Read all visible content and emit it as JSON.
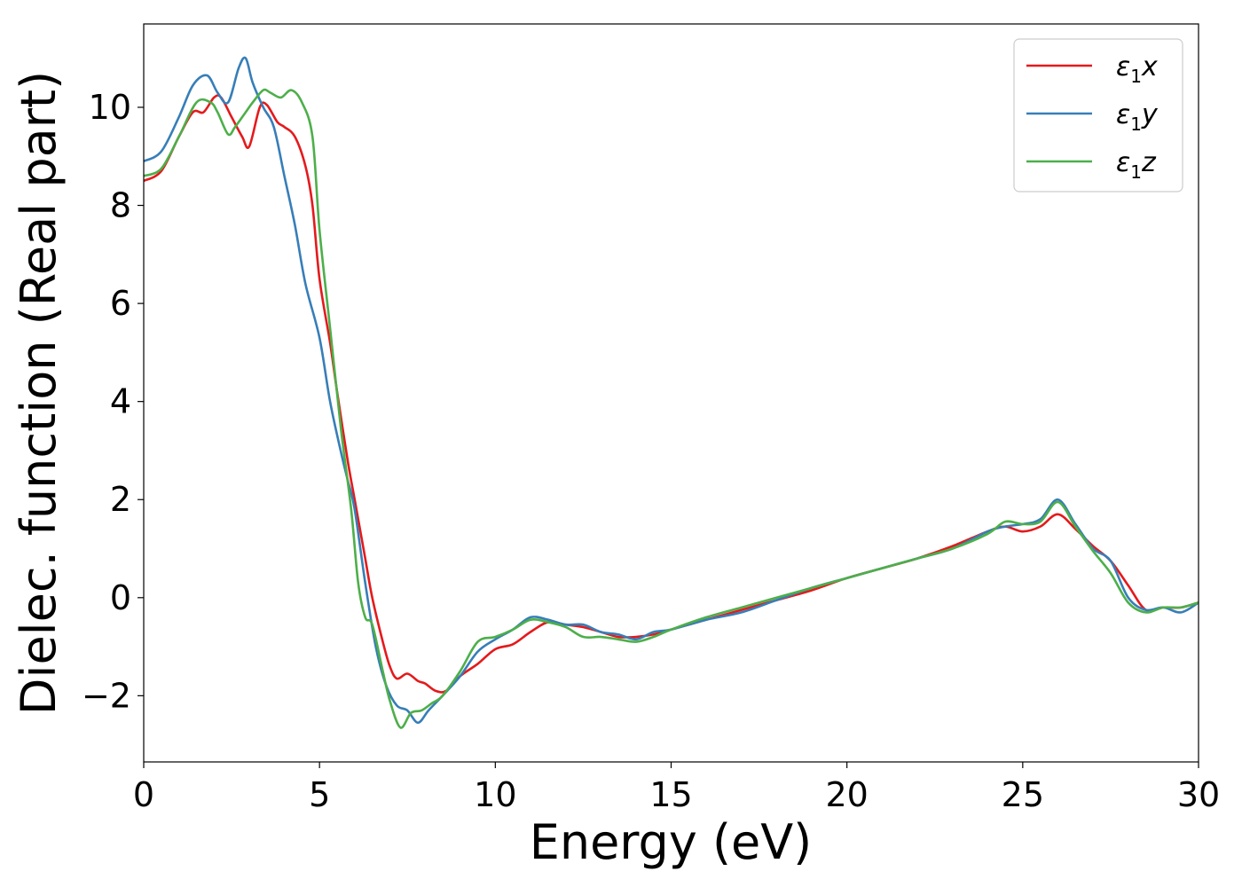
{
  "chart_data": {
    "type": "line",
    "title": "",
    "xlabel": "Energy (eV)",
    "ylabel": "Dielec. function (Real part)",
    "xlim": [
      0,
      30
    ],
    "ylim": [
      -3.35,
      11.7
    ],
    "xticks": [
      0,
      5,
      10,
      15,
      20,
      25,
      30
    ],
    "xtick_labels": [
      "0",
      "5",
      "10",
      "15",
      "20",
      "25",
      "30"
    ],
    "yticks": [
      -2,
      0,
      2,
      4,
      6,
      8,
      10
    ],
    "ytick_labels": [
      "−2",
      "0",
      "2",
      "4",
      "6",
      "8",
      "10"
    ],
    "grid": false,
    "legend_position": "top-right",
    "series": [
      {
        "name": "ε₁x",
        "legend_base": "ε",
        "legend_sub": "1",
        "legend_var": "x",
        "color": "#e41a1c",
        "x": [
          0,
          0.5,
          1.0,
          1.4,
          1.7,
          2.0,
          2.2,
          2.5,
          2.8,
          3.0,
          3.3,
          3.5,
          3.8,
          4.0,
          4.3,
          4.6,
          4.8,
          5.0,
          5.3,
          5.5,
          5.8,
          6.0,
          6.3,
          6.5,
          6.8,
          7.0,
          7.2,
          7.5,
          7.8,
          8.0,
          8.3,
          8.6,
          9.0,
          9.5,
          10.0,
          10.5,
          11.0,
          11.5,
          12.0,
          12.5,
          13.0,
          13.5,
          14.0,
          14.5,
          15.0,
          16.0,
          17.0,
          18.0,
          19.0,
          20.0,
          21.0,
          22.0,
          23.0,
          24.0,
          24.5,
          25.0,
          25.5,
          26.0,
          26.5,
          27.0,
          27.5,
          28.0,
          28.5,
          29.0,
          29.5,
          30.0
        ],
        "y": [
          8.5,
          8.7,
          9.4,
          9.9,
          9.9,
          10.2,
          10.2,
          9.8,
          9.4,
          9.2,
          10.0,
          10.05,
          9.7,
          9.6,
          9.4,
          8.8,
          8.0,
          6.5,
          5.2,
          4.2,
          2.8,
          2.0,
          0.8,
          0.0,
          -0.9,
          -1.4,
          -1.65,
          -1.55,
          -1.7,
          -1.75,
          -1.9,
          -1.9,
          -1.6,
          -1.35,
          -1.05,
          -0.95,
          -0.7,
          -0.5,
          -0.55,
          -0.6,
          -0.7,
          -0.8,
          -0.8,
          -0.75,
          -0.65,
          -0.45,
          -0.25,
          -0.05,
          0.15,
          0.4,
          0.6,
          0.8,
          1.05,
          1.35,
          1.45,
          1.35,
          1.45,
          1.7,
          1.4,
          1.05,
          0.75,
          0.25,
          -0.25,
          -0.2,
          -0.2,
          -0.1
        ]
      },
      {
        "name": "ε₁y",
        "legend_base": "ε",
        "legend_sub": "1",
        "legend_var": "y",
        "color": "#377eb8",
        "x": [
          0,
          0.5,
          1.0,
          1.4,
          1.8,
          2.1,
          2.4,
          2.7,
          2.9,
          3.1,
          3.4,
          3.7,
          4.0,
          4.3,
          4.6,
          5.0,
          5.3,
          5.6,
          5.8,
          6.0,
          6.3,
          6.6,
          6.9,
          7.2,
          7.5,
          7.8,
          8.1,
          8.5,
          9.0,
          9.5,
          10.0,
          10.5,
          11.0,
          11.5,
          12.0,
          12.5,
          13.0,
          13.5,
          14.0,
          14.5,
          15.0,
          16.0,
          17.0,
          18.0,
          19.0,
          20.0,
          21.0,
          22.0,
          23.0,
          24.0,
          24.5,
          25.0,
          25.5,
          26.0,
          26.5,
          27.0,
          27.5,
          28.0,
          28.5,
          29.0,
          29.5,
          30.0
        ],
        "y": [
          8.9,
          9.1,
          9.8,
          10.45,
          10.65,
          10.3,
          10.1,
          10.8,
          11.0,
          10.5,
          10.0,
          9.6,
          8.6,
          7.6,
          6.4,
          5.3,
          4.0,
          3.0,
          2.4,
          1.8,
          0.3,
          -1.0,
          -1.8,
          -2.2,
          -2.3,
          -2.55,
          -2.3,
          -2.0,
          -1.6,
          -1.1,
          -0.85,
          -0.65,
          -0.4,
          -0.45,
          -0.55,
          -0.55,
          -0.7,
          -0.75,
          -0.85,
          -0.7,
          -0.65,
          -0.45,
          -0.3,
          -0.05,
          0.2,
          0.4,
          0.6,
          0.8,
          1.0,
          1.35,
          1.45,
          1.5,
          1.6,
          2.0,
          1.5,
          1.0,
          0.75,
          0.0,
          -0.25,
          -0.2,
          -0.3,
          -0.1
        ]
      },
      {
        "name": "ε₁z",
        "legend_base": "ε",
        "legend_sub": "1",
        "legend_var": "z",
        "color": "#4daf4a",
        "x": [
          0,
          0.5,
          1.0,
          1.5,
          1.9,
          2.1,
          2.4,
          2.6,
          2.9,
          3.1,
          3.4,
          3.6,
          3.9,
          4.2,
          4.5,
          4.8,
          5.0,
          5.3,
          5.6,
          5.9,
          6.1,
          6.3,
          6.5,
          6.8,
          7.0,
          7.3,
          7.6,
          7.9,
          8.2,
          8.5,
          9.0,
          9.5,
          10.0,
          10.5,
          11.0,
          11.5,
          12.0,
          12.5,
          13.0,
          13.5,
          14.0,
          14.5,
          15.0,
          16.0,
          17.0,
          18.0,
          19.0,
          20.0,
          21.0,
          22.0,
          23.0,
          24.0,
          24.5,
          25.0,
          25.5,
          26.0,
          26.5,
          27.0,
          27.5,
          28.0,
          28.5,
          29.0,
          29.5,
          30.0
        ],
        "y": [
          8.6,
          8.75,
          9.4,
          10.1,
          10.1,
          9.9,
          9.45,
          9.6,
          9.9,
          10.1,
          10.35,
          10.3,
          10.2,
          10.35,
          10.1,
          9.4,
          7.5,
          5.5,
          3.5,
          1.8,
          0.3,
          -0.4,
          -0.55,
          -1.5,
          -2.1,
          -2.65,
          -2.35,
          -2.3,
          -2.15,
          -2.0,
          -1.5,
          -0.9,
          -0.8,
          -0.65,
          -0.45,
          -0.5,
          -0.6,
          -0.8,
          -0.8,
          -0.85,
          -0.9,
          -0.8,
          -0.65,
          -0.4,
          -0.2,
          0.0,
          0.2,
          0.4,
          0.6,
          0.8,
          1.0,
          1.3,
          1.55,
          1.5,
          1.55,
          1.95,
          1.45,
          0.95,
          0.5,
          -0.1,
          -0.3,
          -0.2,
          -0.2,
          -0.1
        ]
      }
    ]
  }
}
